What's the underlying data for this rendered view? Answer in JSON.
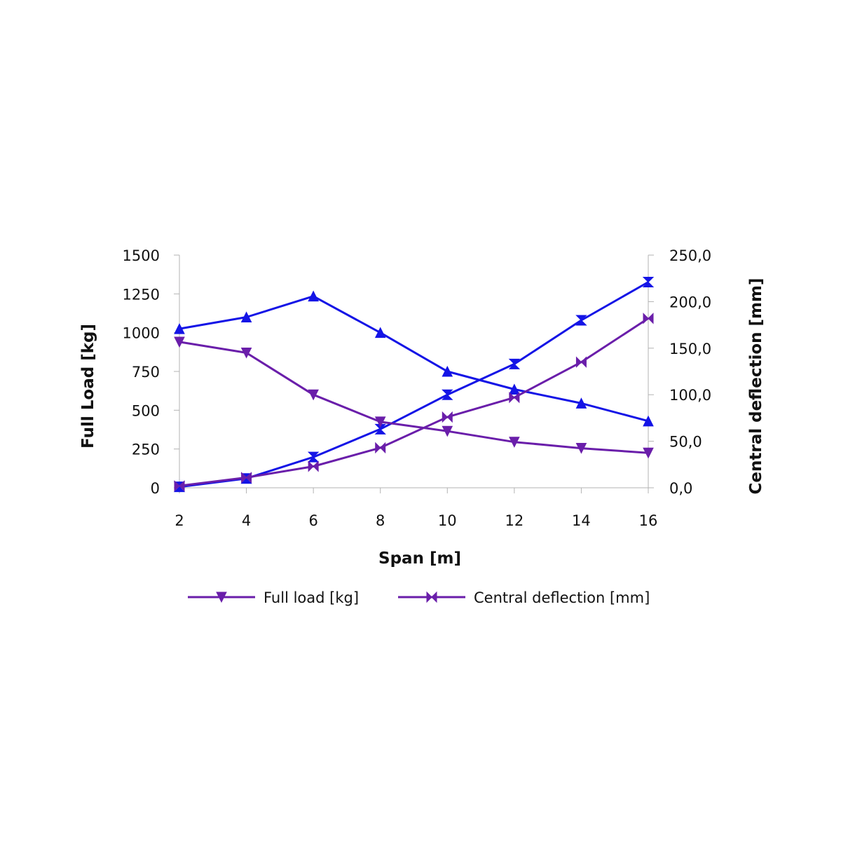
{
  "chart_data": {
    "type": "line",
    "x": [
      2,
      4,
      6,
      8,
      10,
      12,
      14,
      16
    ],
    "xlabel": "Span [m]",
    "ylabel": "Full Load [kg]",
    "y2label": "Central deflection [mm]",
    "ylim": [
      0,
      1500
    ],
    "y2lim": [
      0,
      250
    ],
    "x_ticks": [
      "2",
      "4",
      "6",
      "8",
      "10",
      "12",
      "14",
      "16"
    ],
    "y_ticks": [
      "0",
      "250",
      "500",
      "750",
      "1000",
      "1250",
      "1500"
    ],
    "y2_ticks": [
      "0,0",
      "50,0",
      "100,0",
      "150,0",
      "200,0",
      "250,0"
    ],
    "grid": false,
    "legend_position": "bottom",
    "series": [
      {
        "name": "",
        "axis": "left",
        "marker": "triangle-up",
        "color": "#1414e6",
        "values": [
          1025,
          1100,
          1235,
          1000,
          750,
          635,
          545,
          430
        ]
      },
      {
        "name": "",
        "axis": "right",
        "marker": "hourglass",
        "color": "#1414e6",
        "values": [
          1,
          10,
          33,
          63,
          100,
          133,
          180,
          221
        ]
      },
      {
        "name": "Full load [kg]",
        "axis": "left",
        "marker": "triangle-down",
        "color": "#6a1eaa",
        "values": [
          940,
          870,
          600,
          425,
          365,
          295,
          255,
          225
        ]
      },
      {
        "name": "Central deflection [mm]",
        "axis": "right",
        "marker": "bowtie",
        "color": "#6a1eaa",
        "values": [
          2,
          11,
          23,
          43,
          76,
          97,
          135,
          182
        ]
      }
    ]
  }
}
